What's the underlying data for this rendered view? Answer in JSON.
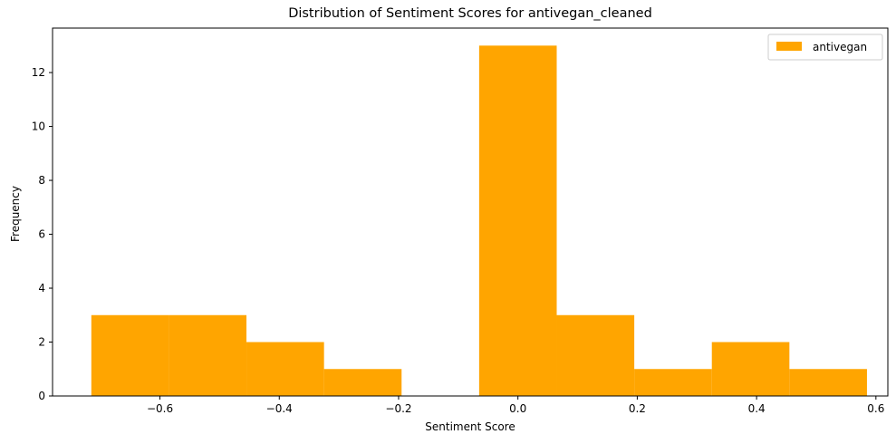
{
  "chart_data": {
    "type": "bar",
    "title": "Distribution of Sentiment Scores for antivegan_cleaned",
    "xlabel": "Sentiment Score",
    "ylabel": "Frequency",
    "xlim": [
      -0.78,
      0.62
    ],
    "ylim": [
      0,
      13.65
    ],
    "xticks": [
      -0.6,
      -0.4,
      -0.2,
      0.0,
      0.2,
      0.4,
      0.6
    ],
    "xtick_labels": [
      "−0.6",
      "−0.4",
      "−0.2",
      "0.0",
      "0.2",
      "0.4",
      "0.6"
    ],
    "yticks": [
      0,
      2,
      4,
      6,
      8,
      10,
      12
    ],
    "ytick_labels": [
      "0",
      "2",
      "4",
      "6",
      "8",
      "10",
      "12"
    ],
    "grid": false,
    "legend_position": "top-right",
    "series": [
      {
        "name": "antivegan",
        "color": "#FFA500",
        "bin_edges": [
          -0.715,
          -0.585,
          -0.455,
          -0.325,
          -0.195,
          -0.065,
          0.065,
          0.195,
          0.325,
          0.455,
          0.585
        ],
        "values": [
          3,
          3,
          2,
          1,
          0,
          13,
          3,
          1,
          2,
          1
        ]
      }
    ]
  }
}
